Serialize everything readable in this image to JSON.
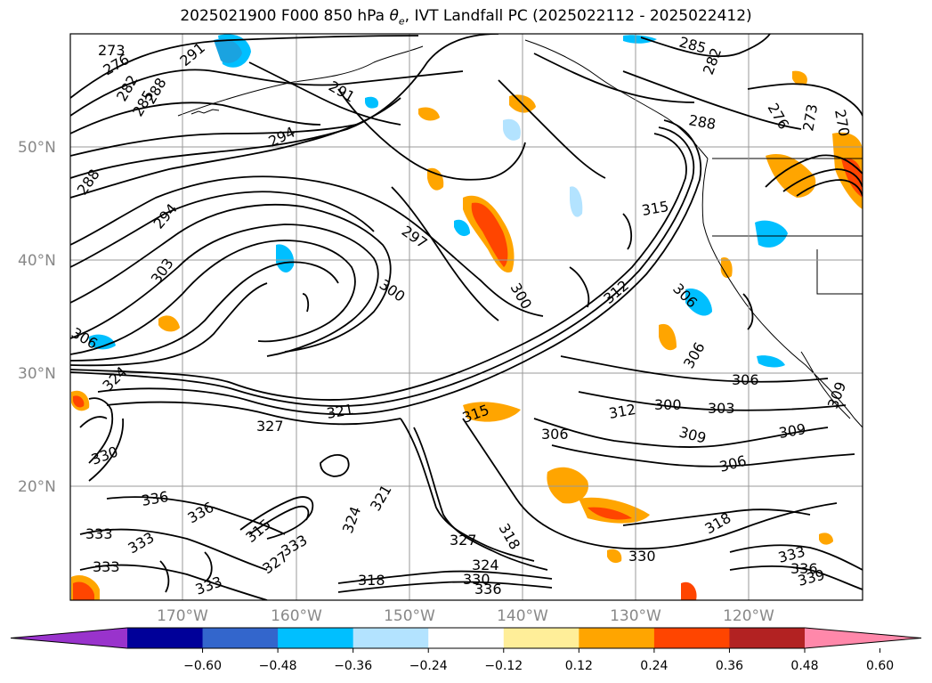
{
  "chart_data": {
    "type": "contour",
    "title_prefix": "2025021900 F000 850 hPa ",
    "title_theta": "θ",
    "title_theta_sub": "e",
    "title_suffix": ", IVT Landfall PC (2025022112 - 2025022412)",
    "x_ticks": [
      "170°W",
      "160°W",
      "150°W",
      "140°W",
      "130°W",
      "120°W"
    ],
    "y_ticks": [
      "50°N",
      "40°N",
      "30°N",
      "20°N"
    ],
    "contour_levels": [
      273,
      276,
      279,
      282,
      285,
      288,
      291,
      294,
      297,
      300,
      303,
      306,
      309,
      312,
      315,
      318,
      321,
      324,
      327,
      330,
      333,
      336,
      339
    ],
    "contour_labels": [
      "273",
      "276",
      "282",
      "285",
      "288",
      "291",
      "294",
      "288",
      "294",
      "297",
      "300",
      "303",
      "300",
      "306",
      "324",
      "321",
      "327",
      "330",
      "336",
      "336",
      "333",
      "333",
      "333",
      "333",
      "327",
      "324",
      "321",
      "315",
      "318",
      "330",
      "333",
      "336",
      "330",
      "327",
      "324",
      "318",
      "306",
      "312",
      "309",
      "306",
      "303",
      "306",
      "309",
      "306",
      "309",
      "300",
      "315",
      "312",
      "285",
      "282",
      "288",
      "276",
      "273",
      "270",
      "291",
      "306",
      "315",
      "333",
      "336",
      "339",
      "318"
    ],
    "colorbar": {
      "colors": [
        "#9933cc",
        "#000099",
        "#3366cc",
        "#00bfff",
        "#b3e3ff",
        "#ffffff",
        "#ffee99",
        "#ffa500",
        "#ff4500",
        "#b22222",
        "#ff88aa"
      ],
      "ticks": [
        "−0.60",
        "−0.48",
        "−0.36",
        "−0.24",
        "−0.12",
        "0.12",
        "0.24",
        "0.36",
        "0.48",
        "0.60"
      ],
      "extend": "both"
    }
  }
}
